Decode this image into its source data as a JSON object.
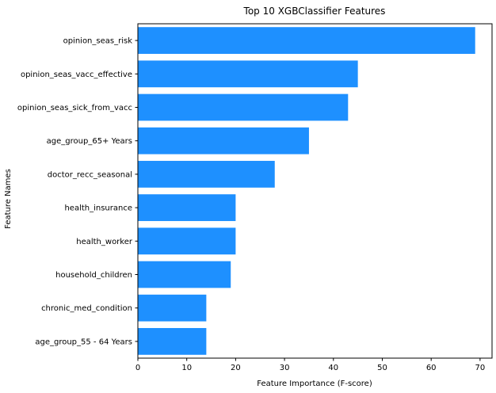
{
  "chart_data": {
    "type": "bar",
    "orientation": "horizontal",
    "title": "Top 10 XGBClassifier Features",
    "xlabel": "Feature Importance (F-score)",
    "ylabel": "Feature Names",
    "xlim": [
      0,
      72.45
    ],
    "xticks": [
      0,
      10,
      20,
      30,
      40,
      50,
      60,
      70
    ],
    "grid": false,
    "bar_color": "#1e90ff",
    "categories": [
      "opinion_seas_risk",
      "opinion_seas_vacc_effective",
      "opinion_seas_sick_from_vacc",
      "age_group_65+ Years",
      "doctor_recc_seasonal",
      "health_insurance",
      "health_worker",
      "household_children",
      "chronic_med_condition",
      "age_group_55 - 64 Years"
    ],
    "values": [
      69,
      45,
      43,
      35,
      28,
      20,
      20,
      19,
      14,
      14
    ]
  }
}
